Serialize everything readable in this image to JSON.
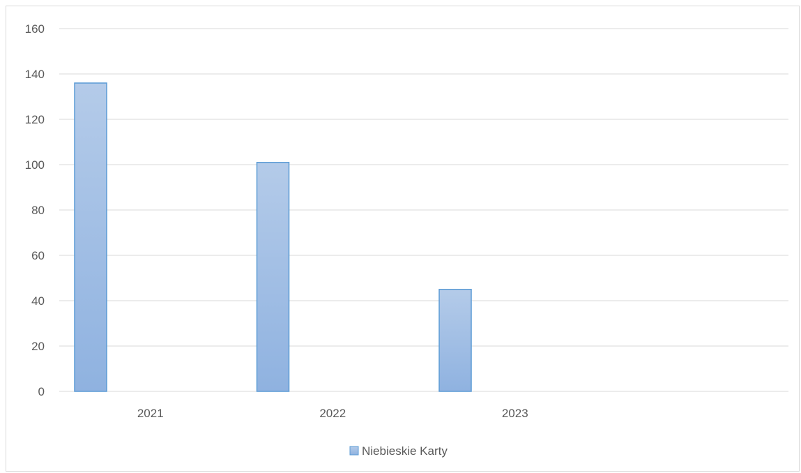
{
  "chart_data": {
    "type": "bar",
    "categories": [
      "2021",
      "2022",
      "2023"
    ],
    "series": [
      {
        "name": "Niebieskie Karty",
        "values": [
          136,
          101,
          45
        ]
      }
    ],
    "title": "",
    "xlabel": "",
    "ylabel": "",
    "ylim": [
      0,
      160
    ],
    "yticks": [
      "0",
      "20",
      "40",
      "60",
      "80",
      "100",
      "120",
      "140",
      "160"
    ],
    "grid": true,
    "legend_position": "bottom",
    "colors": {
      "bar_fill_top": "#b4cbe9",
      "bar_fill_bottom": "#8fb2e0",
      "bar_stroke": "#5b9bd5",
      "grid": "#d9d9d9",
      "text": "#595959"
    }
  }
}
